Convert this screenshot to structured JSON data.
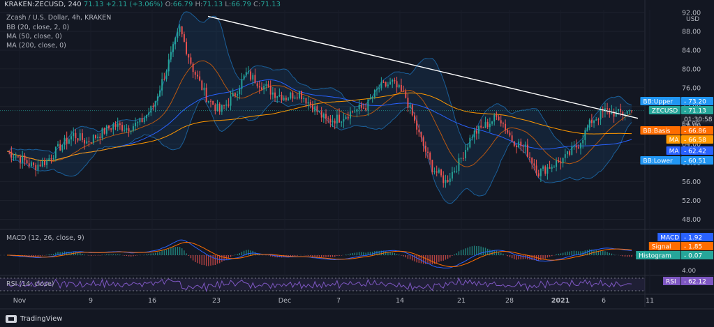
{
  "header": {
    "symbol": "KRAKEN:ZECUSD, 240",
    "last": "71.13",
    "change": "+2.11 (+3.06%)",
    "o_label": "O:",
    "o": "66.79",
    "h_label": "H:",
    "h": "71.13",
    "l_label": "L:",
    "l": "66.79",
    "c_label": "C:",
    "c": "71.13"
  },
  "legend": {
    "title": "Zcash / U.S. Dollar, 4h, KRAKEN",
    "bb": "BB (20, close, 2, 0)",
    "ma50": "MA (50, close, 0)",
    "ma200": "MA (200, close, 0)",
    "macd": "MACD (12, 26, close, 9)",
    "rsi": "RSI (14, close)"
  },
  "branding": {
    "name": "TradingView"
  },
  "colors": {
    "background": "#131722",
    "up": "#26a69a",
    "down": "#ef5350",
    "bb_band": "#2196f3",
    "bb_basis": "#ff6d00",
    "ma50": "#2962ff",
    "ma200": "#ff9800",
    "trendline": "#ffffff",
    "macd": "#2962ff",
    "signal": "#ff6d00",
    "rsi": "#7e57c2"
  },
  "chart_data": [
    {
      "type": "candlestick",
      "panel": "price",
      "unit": "USD",
      "y_ticks": [
        92,
        88,
        84,
        80,
        76,
        72,
        68,
        64,
        60,
        56,
        52,
        48
      ],
      "x_ticks": [
        "Nov",
        "9",
        "16",
        "23",
        "Dec",
        "7",
        "14",
        "21",
        "28",
        "2021",
        "6",
        "11"
      ],
      "price_series": [
        [
          "Nov",
          62.5
        ],
        [
          "5",
          61.0
        ],
        [
          "7",
          59.2
        ],
        [
          "8",
          60.5
        ],
        [
          "9",
          63.5
        ],
        [
          "11",
          66.0
        ],
        [
          "13",
          64.5
        ],
        [
          "16",
          66.2
        ],
        [
          "18",
          68.0
        ],
        [
          "20",
          67.5
        ],
        [
          "21",
          68.5
        ],
        [
          "22",
          72.0
        ],
        [
          "23",
          80.0
        ],
        [
          "24",
          88.5
        ],
        [
          "25",
          80.0
        ],
        [
          "26",
          74.0
        ],
        [
          "27",
          71.0
        ],
        [
          "29",
          74.0
        ],
        [
          "Dec",
          79.0
        ],
        [
          "2",
          77.0
        ],
        [
          "4",
          75.0
        ],
        [
          "6",
          74.0
        ],
        [
          "7",
          75.0
        ],
        [
          "9",
          72.0
        ],
        [
          "11",
          69.0
        ],
        [
          "13",
          69.5
        ],
        [
          "14",
          71.0
        ],
        [
          "16",
          72.0
        ],
        [
          "18",
          76.0
        ],
        [
          "20",
          77.0
        ],
        [
          "21",
          74.0
        ],
        [
          "22",
          66.0
        ],
        [
          "23",
          59.0
        ],
        [
          "24",
          56.0
        ],
        [
          "25",
          60.0
        ],
        [
          "27",
          66.0
        ],
        [
          "28",
          68.0
        ],
        [
          "29",
          70.0
        ],
        [
          "30",
          65.0
        ],
        [
          "31",
          63.0
        ],
        [
          "2021",
          58.0
        ],
        [
          "3",
          59.5
        ],
        [
          "5",
          61.0
        ],
        [
          "6",
          64.0
        ],
        [
          "7",
          69.0
        ],
        [
          "8",
          71.0
        ],
        [
          "9",
          70.5
        ],
        [
          "10",
          71.13
        ]
      ],
      "indicators": [
        {
          "name": "BB:Upper",
          "value": 73.2
        },
        {
          "name": "ZECUSD",
          "value": 71.13
        },
        {
          "name": "BB:Basis",
          "value": 66.86
        },
        {
          "name": "MA",
          "value": 66.58
        },
        {
          "name": "MA",
          "value": 62.42
        },
        {
          "name": "BB:Lower",
          "value": 60.51
        }
      ],
      "axis_labels": [
        "01:30:58",
        "64.00"
      ]
    },
    {
      "type": "macd",
      "panel": "macd",
      "y_ticks": [
        "4.00"
      ],
      "indicators": [
        {
          "name": "MACD",
          "value": 1.92
        },
        {
          "name": "Signal",
          "value": 1.85
        },
        {
          "name": "Histogram",
          "value": 0.07
        }
      ]
    },
    {
      "type": "line",
      "panel": "rsi",
      "indicators": [
        {
          "name": "RSI",
          "value": 62.12
        }
      ]
    }
  ]
}
